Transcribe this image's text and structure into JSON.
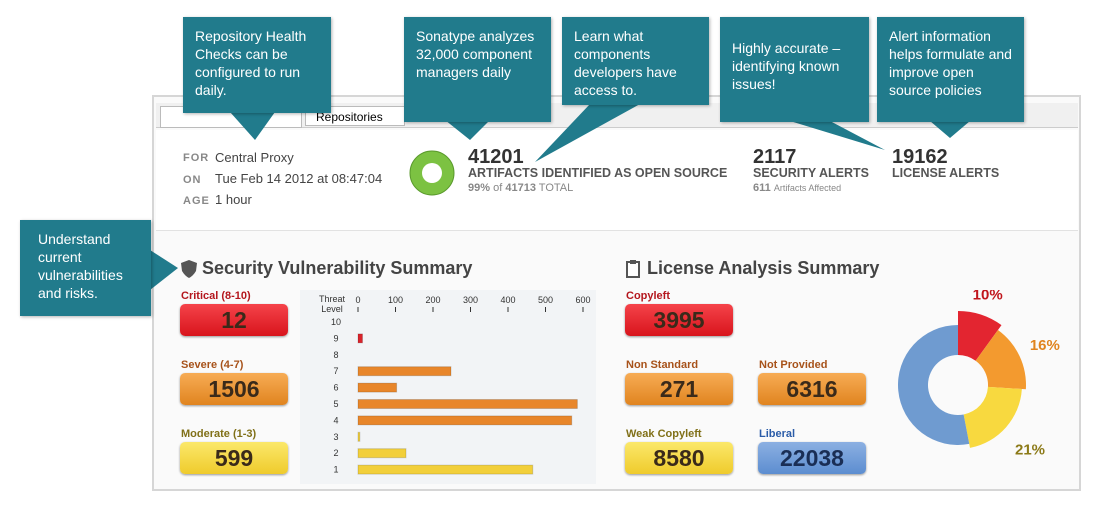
{
  "callouts": [
    "Repository Health Checks can be configured to run daily.",
    "Sonatype analyzes 32,000 component managers daily",
    "Learn what components developers have access to.",
    "Highly accurate – identifying known issues!",
    "Alert information helps formulate and improve open source policies",
    "Understand current vulnerabilities and risks."
  ],
  "tabs": [
    "Repositories"
  ],
  "report": {
    "for_label": "FOR",
    "for": "Central Proxy",
    "on_label": "ON",
    "on": "Tue Feb 14 2012 at 08:47:04",
    "age_label": "AGE",
    "age": "1 hour"
  },
  "summary": {
    "artifacts": "41201",
    "artifacts_label": "ARTIFACTS IDENTIFIED AS OPEN SOURCE",
    "percent": "99%",
    "of": "of",
    "total": "41713",
    "total_label": "TOTAL",
    "security": "2117",
    "security_label": "SECURITY ALERTS",
    "affected": "611",
    "affected_label": "Artifacts Affected",
    "license": "19162",
    "license_label": "LICENSE ALERTS"
  },
  "security": {
    "title": "Security Vulnerability Summary",
    "badges": [
      {
        "label": "Critical (8-10)",
        "value": "12",
        "color": "red"
      },
      {
        "label": "Severe (4-7)",
        "value": "1506",
        "color": "orange"
      },
      {
        "label": "Moderate (1-3)",
        "value": "599",
        "color": "yellow"
      }
    ]
  },
  "license": {
    "title": "License Analysis Summary",
    "badges": [
      {
        "label": "Copyleft",
        "value": "3995",
        "color": "red"
      },
      {
        "label": "Non Standard",
        "value": "271",
        "color": "orange"
      },
      {
        "label": "Not Provided",
        "value": "6316",
        "color": "orange"
      },
      {
        "label": "Weak Copyleft",
        "value": "8580",
        "color": "yellow"
      },
      {
        "label": "Liberal",
        "value": "22038",
        "color": "blue"
      }
    ]
  },
  "chart_data": [
    {
      "type": "bar",
      "orientation": "horizontal",
      "axis_label": "Threat Level",
      "categories": [
        "10",
        "9",
        "8",
        "7",
        "6",
        "5",
        "4",
        "3",
        "2",
        "1"
      ],
      "values": [
        0,
        12,
        0,
        248,
        103,
        585,
        570,
        5,
        128,
        466
      ],
      "colors": [
        "#d9232b",
        "#d9232b",
        "#e8862a",
        "#e8862a",
        "#e8862a",
        "#e8862a",
        "#e8862a",
        "#f2cf3a",
        "#f2cf3a",
        "#f2cf3a"
      ],
      "xlim": [
        0,
        600
      ],
      "xticks": [
        0,
        100,
        200,
        300,
        400,
        500,
        600
      ]
    },
    {
      "type": "pie",
      "values": [
        10,
        16,
        21,
        53
      ],
      "value_labels": [
        "10%",
        "16%",
        "21%",
        null
      ],
      "colors": [
        "#e32530",
        "#f39a2f",
        "#f8d93f",
        "#6f9bd0"
      ]
    }
  ]
}
